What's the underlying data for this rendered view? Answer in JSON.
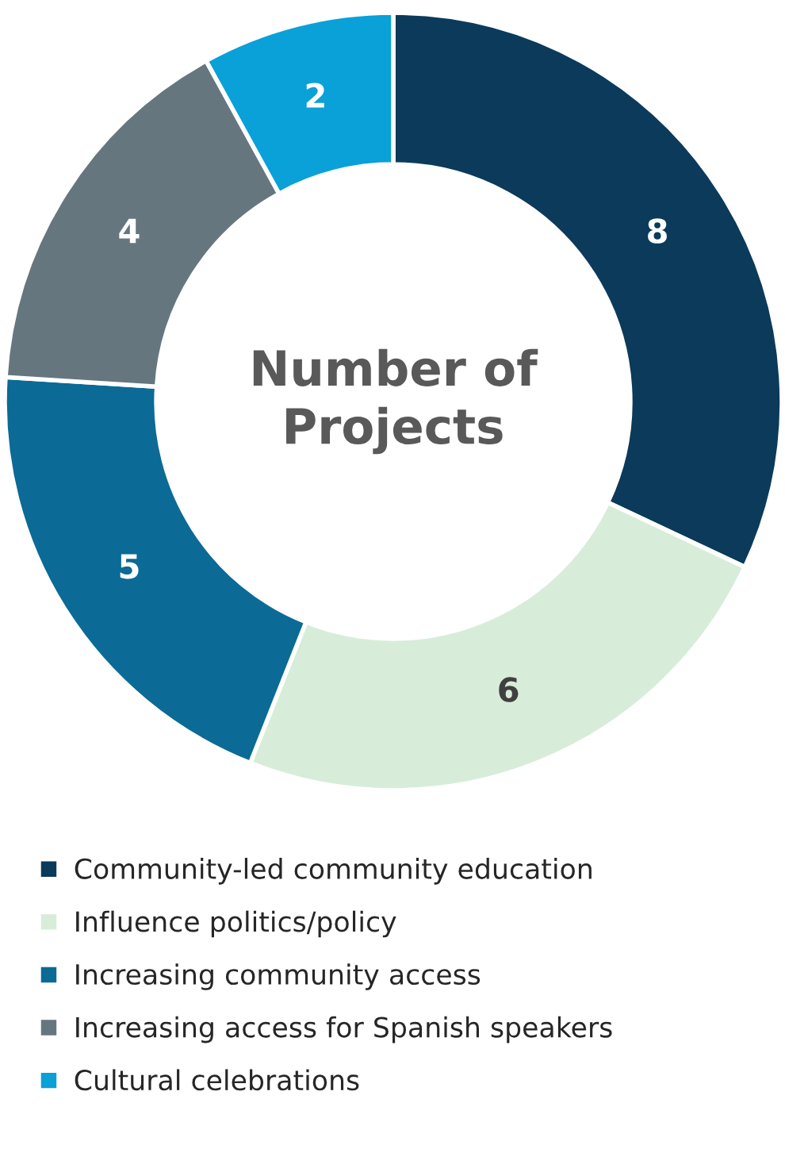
{
  "chart_data": {
    "type": "donut",
    "title": "Number of Projects",
    "categories": [
      "Community-led community education",
      "Influence politics/policy",
      "Increasing community access",
      "Increasing access for Spanish speakers",
      "Cultural celebrations"
    ],
    "values": [
      8,
      6,
      5,
      4,
      2
    ],
    "colors": [
      "#0b3a5b",
      "#d8ecda",
      "#0b6a96",
      "#66767f",
      "#0aa0d8"
    ],
    "data_labels": true,
    "legend": "bottom"
  }
}
